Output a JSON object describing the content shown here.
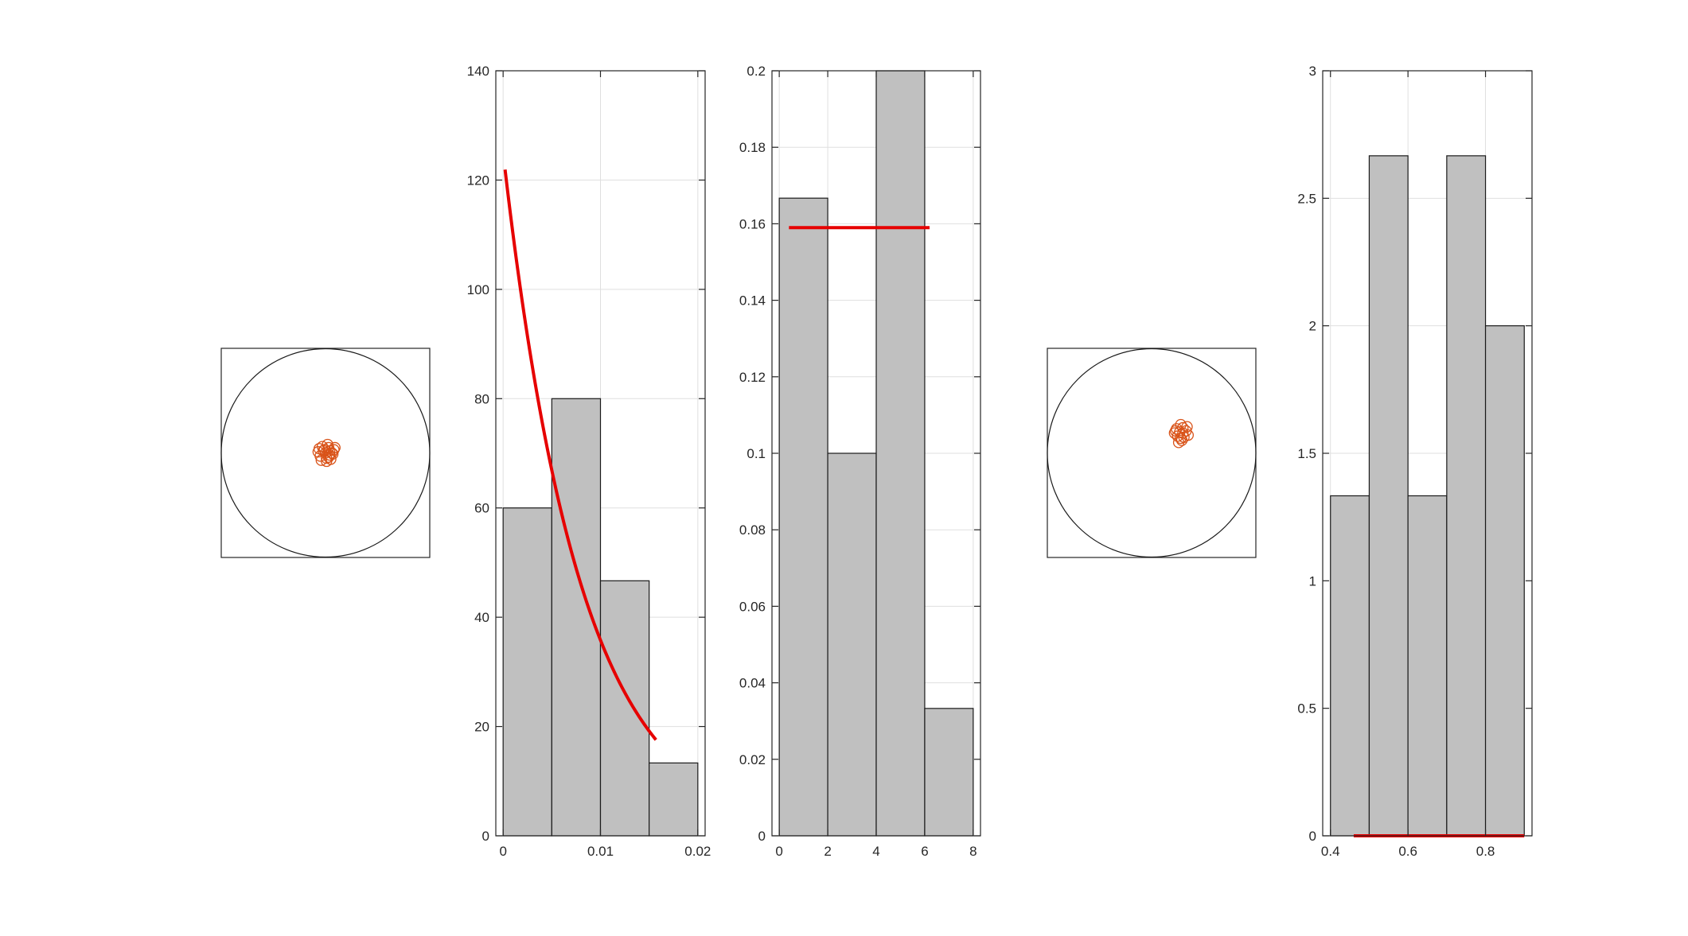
{
  "colors": {
    "bar_fill": "#c0c0c0",
    "bar_edge": "#1a1a1a",
    "fit_line": "#e60000",
    "marker": "#d95319",
    "grid": "#dfdfdf",
    "axis": "#262626"
  },
  "chart_data": [
    {
      "type": "scatter",
      "title": "",
      "xlabel": "",
      "ylabel": "",
      "axes_visible": false,
      "xlim": [
        -1,
        1
      ],
      "ylim": [
        -1,
        1
      ],
      "shapes": [
        {
          "kind": "unit-circle",
          "center": [
            0,
            0
          ],
          "radius": 1
        }
      ],
      "marker": "circle",
      "x": [
        -0.02,
        0.03,
        0.06,
        -0.05,
        0.01,
        0.08,
        -0.03,
        0.04,
        -0.07,
        0.02,
        0.05,
        -0.01,
        0.07,
        -0.04,
        0.0,
        0.03,
        0.09,
        -0.06,
        0.01,
        0.04
      ],
      "y": [
        0.02,
        0.05,
        0.0,
        -0.03,
        -0.05,
        0.03,
        0.06,
        -0.02,
        0.01,
        0.08,
        -0.06,
        0.03,
        -0.01,
        -0.07,
        0.0,
        -0.04,
        0.05,
        0.04,
        -0.08,
        0.02
      ]
    },
    {
      "type": "bar",
      "title": "",
      "xlabel": "",
      "ylabel": "",
      "xlim": [
        -0.00075,
        0.02075
      ],
      "ylim": [
        0,
        140
      ],
      "bin_edges": [
        0,
        0.005,
        0.01,
        0.015,
        0.02
      ],
      "values": [
        60,
        80,
        46.67,
        13.33
      ],
      "xticks": [
        0,
        0.01,
        0.02
      ],
      "xtick_labels": [
        "0",
        "0.01",
        "0.02"
      ],
      "yticks": [
        0,
        20,
        40,
        60,
        80,
        100,
        120,
        140
      ],
      "ytick_labels": [
        "0",
        "20",
        "40",
        "60",
        "80",
        "100",
        "120",
        "140"
      ],
      "grid": true,
      "fit": {
        "kind": "exponential-pdf",
        "lambda": 125,
        "x_range": [
          0.0002,
          0.0157
        ]
      }
    },
    {
      "type": "bar",
      "title": "",
      "xlabel": "",
      "ylabel": "",
      "xlim": [
        -0.3,
        8.3
      ],
      "ylim": [
        0,
        0.2
      ],
      "bin_edges": [
        0,
        2,
        4,
        6,
        8
      ],
      "values": [
        0.1667,
        0.1,
        0.2,
        0.0333
      ],
      "xticks": [
        0,
        2,
        4,
        6,
        8
      ],
      "xtick_labels": [
        "0",
        "2",
        "4",
        "6",
        "8"
      ],
      "yticks": [
        0,
        0.02,
        0.04,
        0.06,
        0.08,
        0.1,
        0.12,
        0.14,
        0.16,
        0.18,
        0.2
      ],
      "ytick_labels": [
        "0",
        "0.02",
        "0.04",
        "0.06",
        "0.08",
        "0.1",
        "0.12",
        "0.14",
        "0.16",
        "0.18",
        "0.2"
      ],
      "grid": true,
      "fit": {
        "kind": "constant",
        "value": 0.159,
        "x_range": [
          0.4,
          6.2
        ]
      }
    },
    {
      "type": "scatter",
      "title": "",
      "xlabel": "",
      "ylabel": "",
      "axes_visible": false,
      "xlim": [
        -1,
        1
      ],
      "ylim": [
        -1,
        1
      ],
      "shapes": [
        {
          "kind": "unit-circle",
          "center": [
            0,
            0
          ],
          "radius": 1
        }
      ],
      "marker": "circle",
      "x": [
        0.27,
        0.3,
        0.25,
        0.33,
        0.29,
        0.22,
        0.35,
        0.28,
        0.24,
        0.31,
        0.26,
        0.34,
        0.3,
        0.23,
        0.28
      ],
      "y": [
        0.2,
        0.24,
        0.16,
        0.21,
        0.12,
        0.19,
        0.17,
        0.27,
        0.23,
        0.15,
        0.1,
        0.25,
        0.19,
        0.21,
        0.14
      ]
    },
    {
      "type": "bar",
      "title": "",
      "xlabel": "",
      "ylabel": "",
      "xlim": [
        0.38,
        0.92
      ],
      "ylim": [
        0,
        3
      ],
      "bin_edges": [
        0.4,
        0.5,
        0.6,
        0.7,
        0.8,
        0.9
      ],
      "values": [
        1.3333,
        2.6667,
        1.3333,
        2.6667,
        2.0
      ],
      "xticks": [
        0.4,
        0.6,
        0.8
      ],
      "xtick_labels": [
        "0.4",
        "0.6",
        "0.8"
      ],
      "yticks": [
        0,
        0.5,
        1,
        1.5,
        2,
        2.5,
        3
      ],
      "ytick_labels": [
        "0",
        "0.5",
        "1",
        "1.5",
        "2",
        "2.5",
        "3"
      ],
      "grid": true,
      "fit": {
        "kind": "constant",
        "value": 0,
        "x_range": [
          0.46,
          0.9
        ]
      }
    }
  ]
}
